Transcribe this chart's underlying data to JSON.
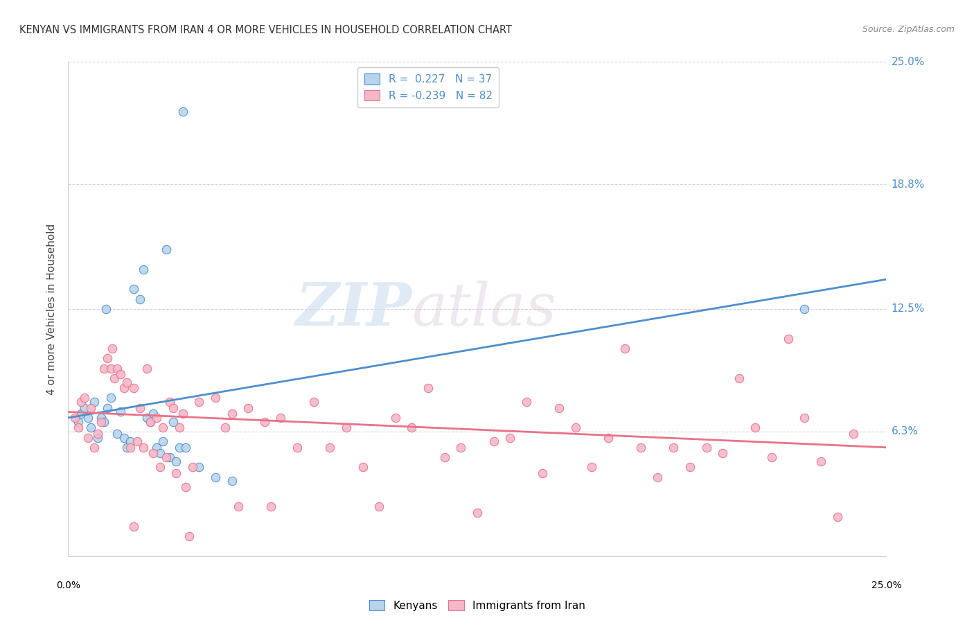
{
  "title": "KENYAN VS IMMIGRANTS FROM IRAN 4 OR MORE VEHICLES IN HOUSEHOLD CORRELATION CHART",
  "source": "Source: ZipAtlas.com",
  "ylabel": "4 or more Vehicles in Household",
  "xlim": [
    0.0,
    25.0
  ],
  "ylim": [
    0.0,
    25.0
  ],
  "ytick_positions": [
    0.0,
    6.3,
    12.5,
    18.8,
    25.0
  ],
  "ytick_labels": [
    "",
    "6.3%",
    "12.5%",
    "18.8%",
    "25.0%"
  ],
  "xtick_positions": [
    0.0,
    25.0
  ],
  "xtick_labels": [
    "0.0%",
    "25.0%"
  ],
  "legend_labels": [
    "Kenyans",
    "Immigrants from Iran"
  ],
  "blue_color": "#4d8fcc",
  "pink_color": "#e8728a",
  "blue_fill": "#b8d4ed",
  "pink_fill": "#f5b8c8",
  "watermark_zip": "ZIP",
  "watermark_atlas": "atlas",
  "kenyan_points": [
    [
      0.4,
      7.2
    ],
    [
      0.5,
      7.5
    ],
    [
      0.6,
      7.0
    ],
    [
      0.7,
      6.5
    ],
    [
      0.8,
      7.8
    ],
    [
      0.9,
      6.0
    ],
    [
      1.0,
      7.0
    ],
    [
      1.1,
      6.8
    ],
    [
      1.15,
      12.5
    ],
    [
      1.2,
      7.5
    ],
    [
      1.3,
      8.0
    ],
    [
      1.5,
      6.2
    ],
    [
      1.6,
      7.3
    ],
    [
      1.7,
      6.0
    ],
    [
      1.8,
      5.5
    ],
    [
      1.9,
      5.8
    ],
    [
      2.0,
      13.5
    ],
    [
      2.2,
      13.0
    ],
    [
      2.3,
      14.5
    ],
    [
      2.4,
      7.0
    ],
    [
      2.5,
      6.8
    ],
    [
      2.6,
      7.2
    ],
    [
      2.7,
      5.5
    ],
    [
      2.8,
      5.2
    ],
    [
      2.9,
      5.8
    ],
    [
      3.0,
      15.5
    ],
    [
      3.1,
      5.0
    ],
    [
      3.2,
      6.8
    ],
    [
      3.3,
      4.8
    ],
    [
      3.4,
      5.5
    ],
    [
      3.5,
      22.5
    ],
    [
      3.6,
      5.5
    ],
    [
      4.0,
      4.5
    ],
    [
      4.5,
      4.0
    ],
    [
      5.0,
      3.8
    ],
    [
      22.5,
      12.5
    ],
    [
      0.3,
      6.8
    ]
  ],
  "iran_points": [
    [
      0.2,
      7.0
    ],
    [
      0.3,
      6.5
    ],
    [
      0.4,
      7.8
    ],
    [
      0.5,
      8.0
    ],
    [
      0.6,
      6.0
    ],
    [
      0.7,
      7.5
    ],
    [
      0.8,
      5.5
    ],
    [
      0.9,
      6.2
    ],
    [
      1.0,
      6.8
    ],
    [
      1.1,
      9.5
    ],
    [
      1.2,
      10.0
    ],
    [
      1.3,
      9.5
    ],
    [
      1.35,
      10.5
    ],
    [
      1.4,
      9.0
    ],
    [
      1.5,
      9.5
    ],
    [
      1.6,
      9.2
    ],
    [
      1.7,
      8.5
    ],
    [
      1.8,
      8.8
    ],
    [
      1.9,
      5.5
    ],
    [
      2.0,
      8.5
    ],
    [
      2.1,
      5.8
    ],
    [
      2.2,
      7.5
    ],
    [
      2.3,
      5.5
    ],
    [
      2.4,
      9.5
    ],
    [
      2.5,
      6.8
    ],
    [
      2.6,
      5.2
    ],
    [
      2.7,
      7.0
    ],
    [
      2.8,
      4.5
    ],
    [
      2.9,
      6.5
    ],
    [
      3.0,
      5.0
    ],
    [
      3.1,
      7.8
    ],
    [
      3.2,
      7.5
    ],
    [
      3.3,
      4.2
    ],
    [
      3.4,
      6.5
    ],
    [
      3.5,
      7.2
    ],
    [
      3.6,
      3.5
    ],
    [
      3.7,
      1.0
    ],
    [
      4.0,
      7.8
    ],
    [
      4.5,
      8.0
    ],
    [
      4.8,
      6.5
    ],
    [
      5.0,
      7.2
    ],
    [
      5.5,
      7.5
    ],
    [
      6.0,
      6.8
    ],
    [
      6.5,
      7.0
    ],
    [
      7.0,
      5.5
    ],
    [
      7.5,
      7.8
    ],
    [
      8.0,
      5.5
    ],
    [
      8.5,
      6.5
    ],
    [
      9.0,
      4.5
    ],
    [
      9.5,
      2.5
    ],
    [
      10.0,
      7.0
    ],
    [
      10.5,
      6.5
    ],
    [
      11.0,
      8.5
    ],
    [
      11.5,
      5.0
    ],
    [
      12.0,
      5.5
    ],
    [
      12.5,
      2.2
    ],
    [
      13.0,
      5.8
    ],
    [
      13.5,
      6.0
    ],
    [
      14.0,
      7.8
    ],
    [
      14.5,
      4.2
    ],
    [
      15.0,
      7.5
    ],
    [
      15.5,
      6.5
    ],
    [
      16.0,
      4.5
    ],
    [
      16.5,
      6.0
    ],
    [
      17.0,
      10.5
    ],
    [
      17.5,
      5.5
    ],
    [
      18.0,
      4.0
    ],
    [
      18.5,
      5.5
    ],
    [
      19.0,
      4.5
    ],
    [
      19.5,
      5.5
    ],
    [
      20.0,
      5.2
    ],
    [
      20.5,
      9.0
    ],
    [
      21.0,
      6.5
    ],
    [
      21.5,
      5.0
    ],
    [
      22.0,
      11.0
    ],
    [
      22.5,
      7.0
    ],
    [
      23.0,
      4.8
    ],
    [
      23.5,
      2.0
    ],
    [
      24.0,
      6.2
    ],
    [
      5.2,
      2.5
    ],
    [
      6.2,
      2.5
    ],
    [
      2.0,
      1.5
    ],
    [
      3.8,
      4.5
    ]
  ],
  "blue_line": {
    "x0": 0.0,
    "y0": 7.0,
    "x1": 25.0,
    "y1": 14.0
  },
  "pink_line": {
    "x0": 0.0,
    "y0": 7.3,
    "x1": 25.0,
    "y1": 5.5
  },
  "grid_color": "#cccccc",
  "background_color": "#ffffff"
}
